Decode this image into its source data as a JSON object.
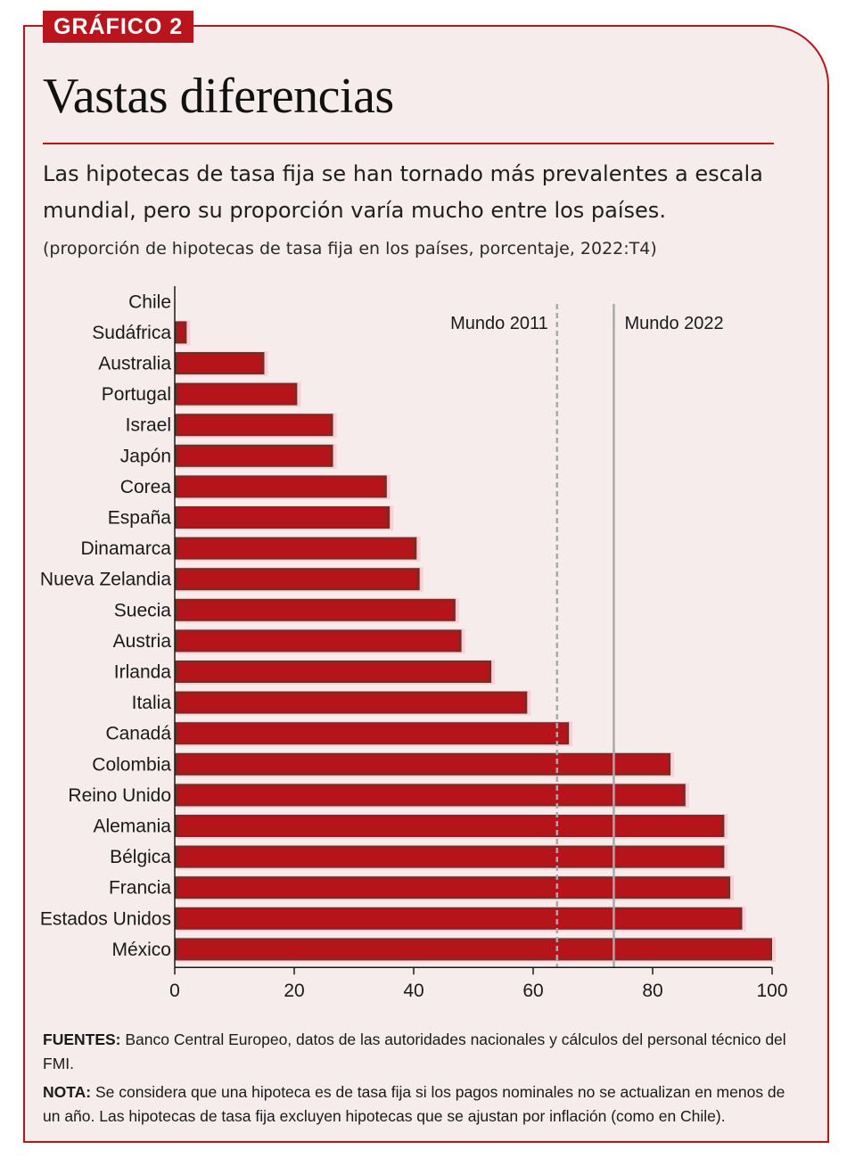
{
  "header": {
    "tag": "GRÁFICO 2",
    "title": "Vastas diferencias",
    "subtitle": "Las hipotecas de tasa fija se han tornado más prevalentes a escala mundial, pero su proporción varía mucho entre los países.",
    "unit_note": "(proporción de hipotecas de tasa fija en los países, porcentaje, 2022:T4)"
  },
  "colors": {
    "accent": "#b8161c",
    "bar": "#b5141b",
    "bar_shade": "#7a2b23",
    "bar_glow": "#f7c6d2",
    "frame_bg": "#f6eceb",
    "ref_line": "#a9a9a9"
  },
  "chart_data": {
    "type": "bar",
    "orientation": "horizontal",
    "title": "Vastas diferencias",
    "xlabel": "",
    "ylabel": "",
    "xlim": [
      0,
      100
    ],
    "xticks": [
      0,
      20,
      40,
      60,
      80,
      100
    ],
    "grid": false,
    "categories": [
      "Chile",
      "Sudáfrica",
      "Australia",
      "Portugal",
      "Israel",
      "Japón",
      "Corea",
      "España",
      "Dinamarca",
      "Nueva Zelandia",
      "Suecia",
      "Austria",
      "Irlanda",
      "Italia",
      "Canadá",
      "Colombia",
      "Reino Unido",
      "Alemania",
      "Bélgica",
      "Francia",
      "Estados Unidos",
      "México"
    ],
    "values": [
      0,
      2,
      15,
      20.5,
      26.5,
      26.5,
      35.5,
      36,
      40.5,
      41,
      47,
      48,
      53,
      59,
      66,
      83,
      85.5,
      92,
      92,
      93,
      95,
      100
    ],
    "reference_lines": [
      {
        "label": "Mundo 2011",
        "value": 64,
        "style": "dashed"
      },
      {
        "label": "Mundo 2022",
        "value": 73.5,
        "style": "solid"
      }
    ]
  },
  "footer": {
    "sources_label": "FUENTES:",
    "sources_text": "Banco Central Europeo, datos de las autoridades nacionales y cálculos del personal técnico del FMI.",
    "note_label": "NOTA:",
    "note_text": "Se considera que una hipoteca es de tasa fija si los pagos nominales no se actualizan en menos de un año. Las hipotecas de tasa fija excluyen hipotecas que se ajustan por inflación (como en Chile)."
  }
}
